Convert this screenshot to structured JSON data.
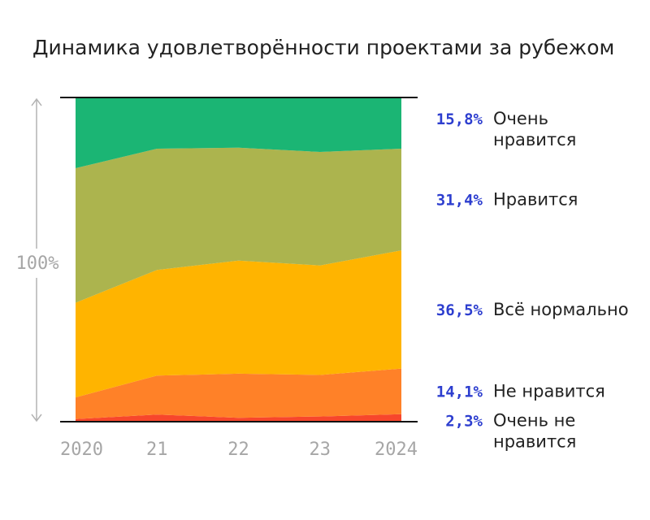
{
  "title": "Динамика удовлетворённости проектами за рубежом",
  "chart_data": {
    "type": "area",
    "title": "Динамика удовлетворённости проектами за рубежом",
    "stacked": true,
    "percent_stacked": true,
    "x_ticks": [
      "2020",
      "21",
      "22",
      "23",
      "2024"
    ],
    "y_axis_label": "100%",
    "ylim": [
      0,
      100
    ],
    "series": [
      {
        "name": "Очень не нравится",
        "label_lines": [
          "Очень не",
          "нравится"
        ],
        "value_label": "2,3%",
        "color": "#f7462c",
        "values": [
          0.8,
          2.2,
          1.2,
          1.6,
          2.3
        ]
      },
      {
        "name": "Не нравится",
        "label_lines": [
          "Не нравится"
        ],
        "value_label": "14,1%",
        "color": "#ff8128",
        "values": [
          6.7,
          12.0,
          13.6,
          12.8,
          14.1
        ]
      },
      {
        "name": "Всё нормально",
        "label_lines": [
          "Всё нормально"
        ],
        "value_label": "36,5%",
        "color": "#ffb400",
        "values": [
          29.2,
          32.6,
          34.9,
          33.8,
          36.5
        ]
      },
      {
        "name": "Нравится",
        "label_lines": [
          "Нравится"
        ],
        "value_label": "31,4%",
        "color": "#acb44e",
        "values": [
          41.5,
          37.4,
          34.8,
          35.0,
          31.4
        ]
      },
      {
        "name": "Очень нравится",
        "label_lines": [
          "Очень",
          "нравится"
        ],
        "value_label": "15,8%",
        "color": "#1bb574",
        "values": [
          21.8,
          15.8,
          15.5,
          16.8,
          15.8
        ]
      }
    ],
    "grid": false,
    "legend_position": "right"
  }
}
